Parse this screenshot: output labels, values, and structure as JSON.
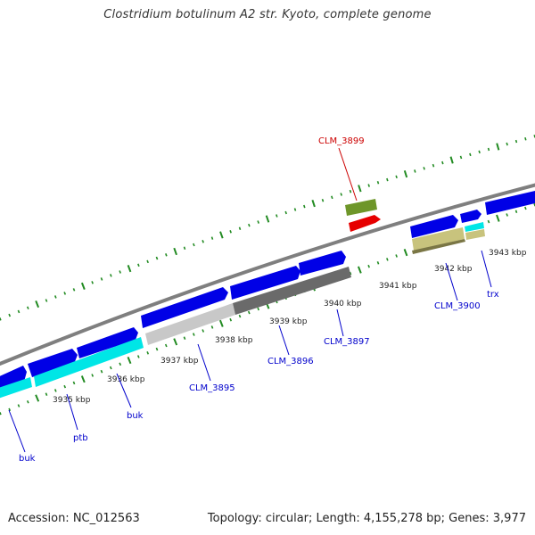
{
  "title": "Clostridium botulinum A2 str. Kyoto, complete genome",
  "footer": {
    "accession": "Accession: NC_012563",
    "summary": "Topology: circular; Length: 4,155,278 bp; Genes: 3,977"
  },
  "colors": {
    "backbone": "#7f7f7f",
    "cds_forward": "#0000e6",
    "cds_reverse_cyan": "#00e6e6",
    "cds_gray_light": "#c8c8c8",
    "cds_gray_dark": "#6a6a6a",
    "cds_khaki": "#c8c37d",
    "cds_olive": "#6e9629",
    "cds_red": "#e60000",
    "tick_green": "#228b22",
    "label_blue": "#0000cc",
    "label_red": "#cc0000"
  },
  "kbp_labels": [
    "3935 kbp",
    "3936 kbp",
    "3937 kbp",
    "3938 kbp",
    "3939 kbp",
    "3940 kbp",
    "3941 kbp",
    "3942 kbp",
    "3943 kbp"
  ],
  "gene_labels": [
    {
      "text": "buk",
      "color": "blue"
    },
    {
      "text": "ptb",
      "color": "blue"
    },
    {
      "text": "buk",
      "color": "blue"
    },
    {
      "text": "CLM_3895",
      "color": "blue"
    },
    {
      "text": "CLM_3896",
      "color": "blue"
    },
    {
      "text": "CLM_3897",
      "color": "blue"
    },
    {
      "text": "CLM_3900",
      "color": "blue"
    },
    {
      "text": "trx",
      "color": "blue"
    },
    {
      "text": "CLM_3899",
      "color": "red"
    }
  ]
}
